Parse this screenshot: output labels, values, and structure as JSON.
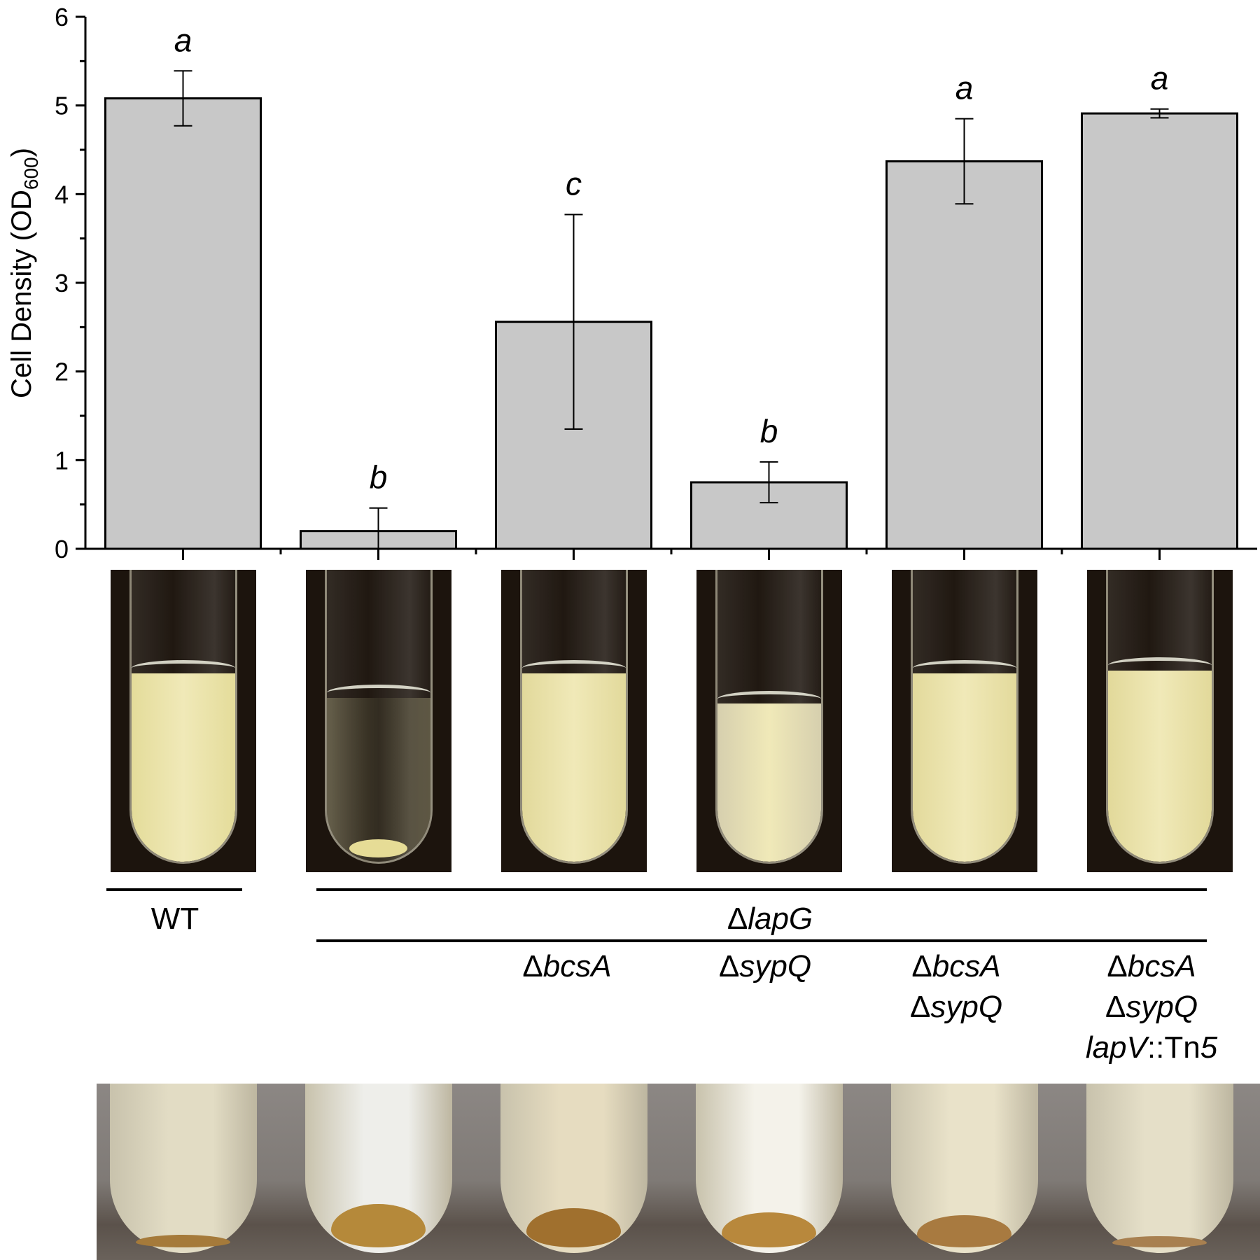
{
  "chart_data": {
    "type": "bar",
    "ylabel": "Cell Density (OD",
    "ylabel_sub": "600",
    "ylabel_end": ")",
    "ylim": [
      0,
      6
    ],
    "yticks": [
      "0",
      "1",
      "2",
      "3",
      "4",
      "5",
      "6"
    ],
    "categories": [
      "WT",
      "ΔlapG",
      "ΔlapG ΔbcsA",
      "ΔlapG ΔsypQ",
      "ΔlapG ΔbcsA ΔsypQ",
      "ΔlapG ΔbcsA ΔsypQ lapV::Tn5"
    ],
    "values": [
      5.08,
      0.2,
      2.56,
      0.75,
      4.37,
      4.91
    ],
    "errors": [
      0.31,
      0.26,
      1.21,
      0.23,
      0.48,
      0.05
    ],
    "significance": [
      "a",
      "b",
      "c",
      "b",
      "a",
      "a"
    ],
    "bar_color": "#c8c8c8",
    "grid": false
  },
  "labels": {
    "wt": "WT",
    "lapG_delta": "Δ",
    "lapG_gene": "lapG",
    "col3": [
      {
        "d": "Δ",
        "g": "bcsA"
      }
    ],
    "col4": [
      {
        "d": "Δ",
        "g": "sypQ"
      }
    ],
    "col5": [
      {
        "d": "Δ",
        "g": "bcsA"
      },
      {
        "d": "Δ",
        "g": "sypQ"
      }
    ],
    "col6": [
      {
        "d": "Δ",
        "g": "bcsA"
      },
      {
        "d": "Δ",
        "g": "sypQ"
      },
      {
        "d": "",
        "g": "lapV",
        "suffix": "::Tn",
        "num": "5"
      }
    ]
  },
  "photos": {
    "liquid_colors": [
      "#e4dc9a",
      "#c9c39e",
      "#e2d99b",
      "#d6cfae",
      "#e3da9c",
      "#e2d99a"
    ],
    "pellet_colors": [
      "#a57a3a",
      "#b5893a",
      "#a0702e",
      "#b8883c",
      "#a87a40",
      "#a88050"
    ]
  }
}
